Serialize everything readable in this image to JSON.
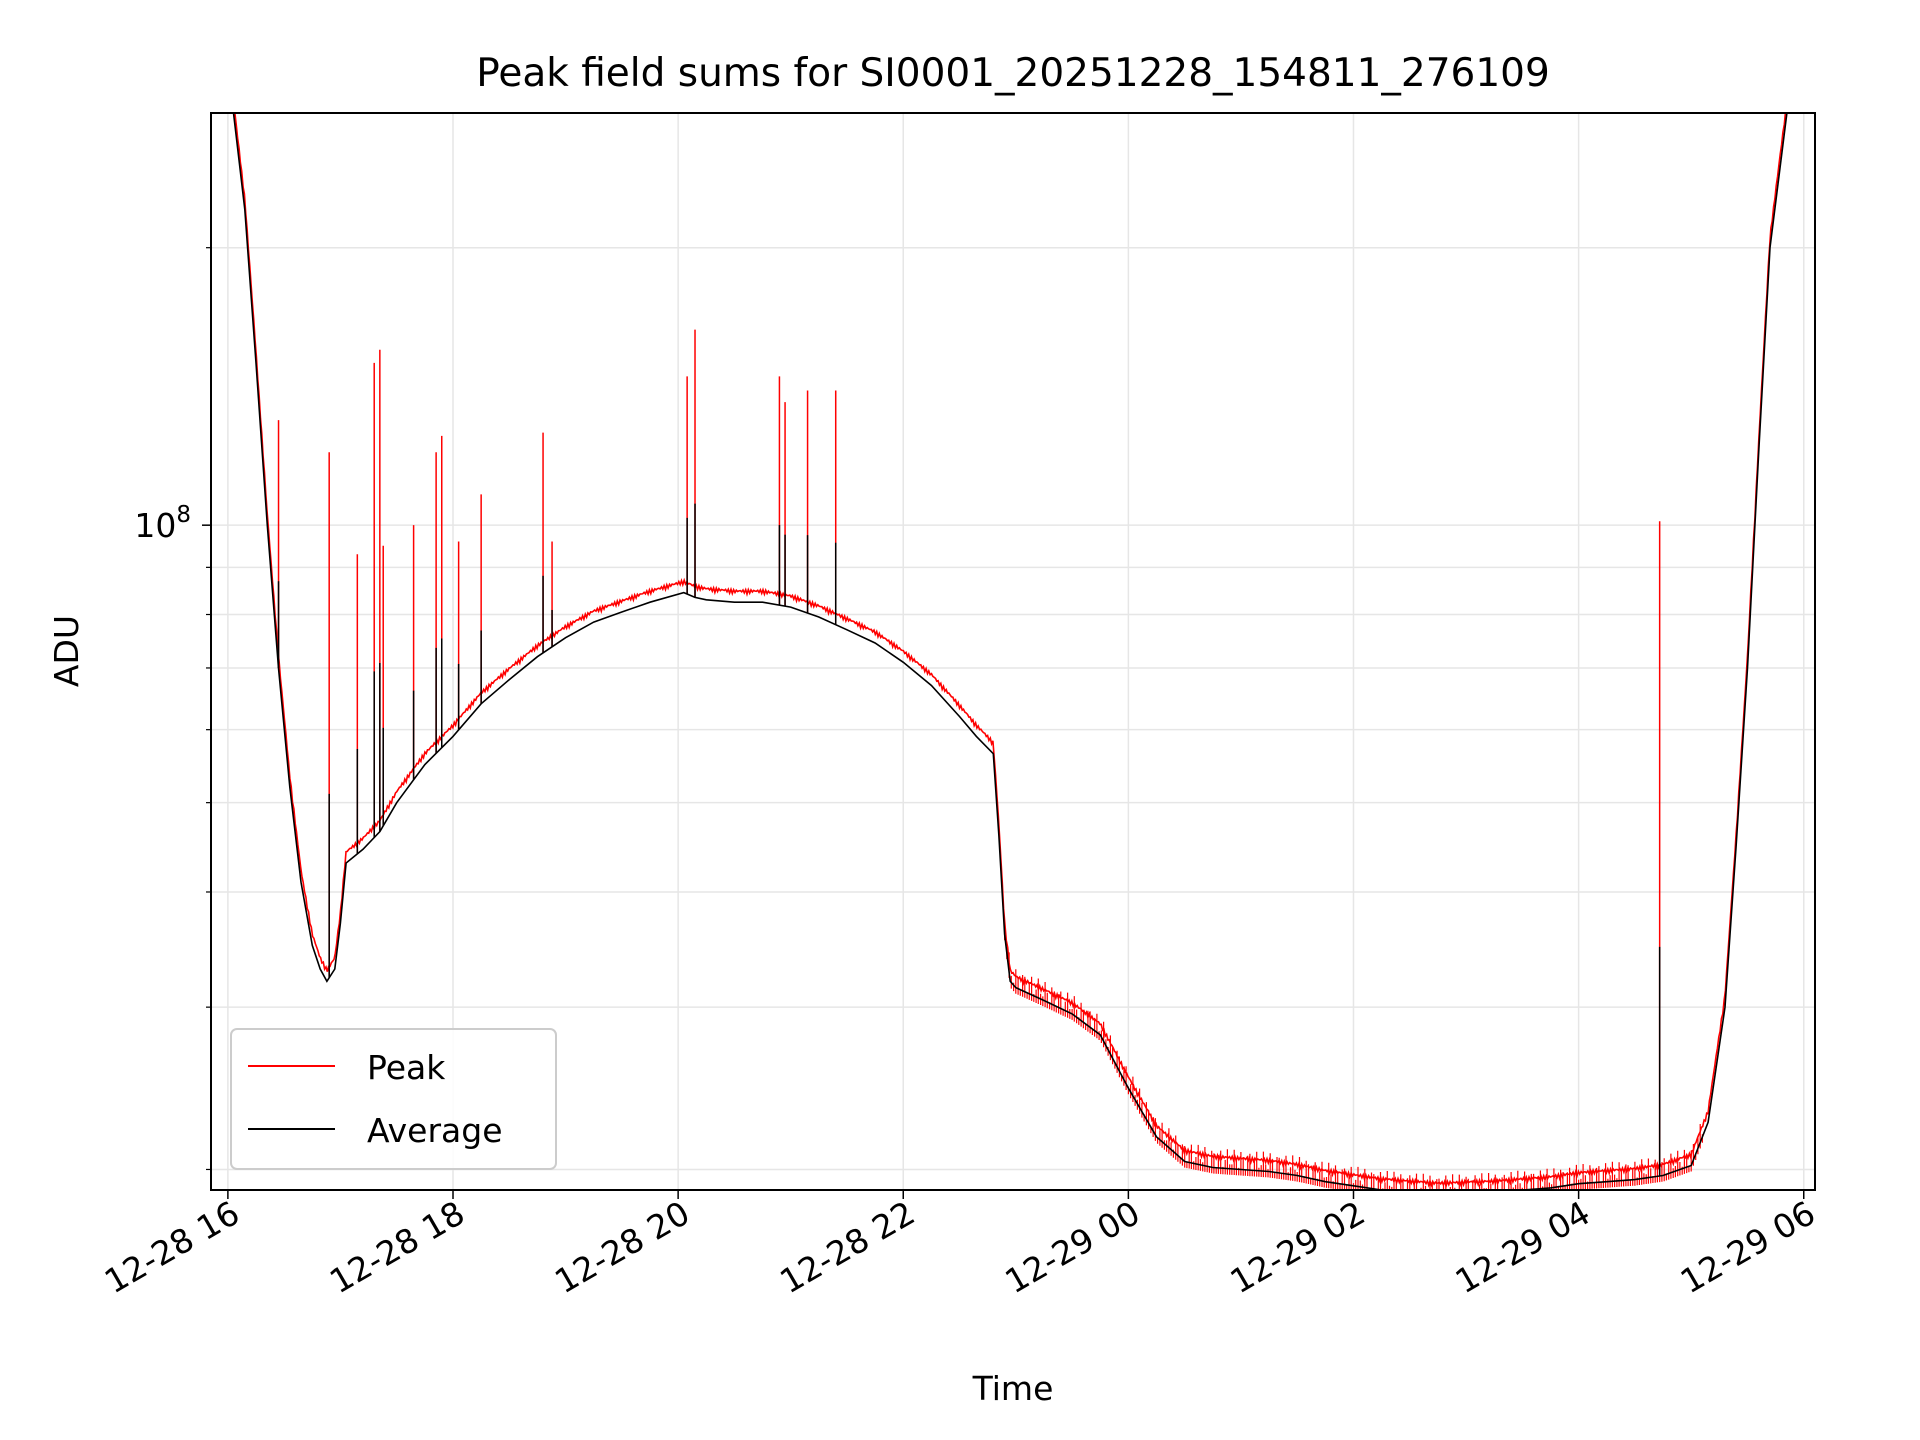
{
  "chart_data": {
    "type": "line",
    "title": "Peak field sums for SI0001_20251228_154811_276109",
    "xlabel": "Time",
    "ylabel": "ADU",
    "y_scale": "log",
    "ylim": [
      19000000,
      280000000
    ],
    "xlim_hours": [
      15.85,
      30.1
    ],
    "grid": true,
    "legend": {
      "position": "lower-left",
      "entries": [
        "Peak",
        "Average"
      ]
    },
    "colors": {
      "Peak": "#ff0000",
      "Average": "#000000",
      "grid": "#e6e6e6"
    },
    "x_ticks": [
      {
        "hour": 16,
        "label": "12-28 16"
      },
      {
        "hour": 18,
        "label": "12-28 18"
      },
      {
        "hour": 20,
        "label": "12-28 20"
      },
      {
        "hour": 22,
        "label": "12-28 22"
      },
      {
        "hour": 24,
        "label": "12-29 00"
      },
      {
        "hour": 26,
        "label": "12-29 02"
      },
      {
        "hour": 28,
        "label": "12-29 04"
      },
      {
        "hour": 30,
        "label": "12-29 06"
      }
    ],
    "y_major_ticks": [
      {
        "value": 100000000,
        "label_base": "10",
        "label_exp": "8"
      }
    ],
    "y_minor_ticks": [
      20000000,
      30000000,
      40000000,
      50000000,
      60000000,
      70000000,
      80000000,
      90000000,
      200000000
    ],
    "series": [
      {
        "name": "Average",
        "x_hours": [
          15.85,
          16.05,
          16.15,
          16.25,
          16.35,
          16.45,
          16.55,
          16.65,
          16.75,
          16.82,
          16.88,
          16.95,
          17.0,
          17.05,
          17.2,
          17.35,
          17.5,
          17.75,
          18.0,
          18.25,
          18.5,
          18.75,
          19.0,
          19.25,
          19.5,
          19.75,
          20.05,
          20.15,
          20.25,
          20.5,
          20.75,
          21.0,
          21.25,
          21.5,
          21.75,
          22.0,
          22.25,
          22.5,
          22.65,
          22.8,
          22.85,
          22.9,
          22.95,
          23.0,
          23.25,
          23.5,
          23.75,
          24.0,
          24.25,
          24.5,
          24.75,
          25.0,
          25.25,
          25.5,
          25.75,
          26.0,
          26.25,
          26.5,
          26.75,
          27.0,
          27.25,
          27.5,
          27.75,
          28.0,
          28.25,
          28.5,
          28.75,
          29.0,
          29.15,
          29.3,
          29.4,
          29.5,
          29.6,
          29.7,
          29.85,
          30.1
        ],
        "y": [
          280000000,
          280000000,
          220000000,
          150000000,
          100000000,
          70000000,
          52000000,
          41000000,
          35000000,
          33000000,
          32000000,
          33000000,
          37000000,
          43000000,
          44500000,
          46500000,
          50000000,
          55000000,
          59000000,
          64000000,
          68000000,
          72000000,
          75500000,
          78500000,
          80500000,
          82500000,
          84500000,
          83500000,
          83000000,
          82500000,
          82500000,
          81500000,
          79500000,
          77000000,
          74500000,
          71000000,
          67000000,
          62000000,
          59000000,
          56500000,
          46000000,
          36000000,
          32000000,
          31500000,
          30500000,
          29500000,
          28000000,
          24500000,
          21700000,
          20400000,
          20100000,
          20000000,
          19900000,
          19700000,
          19400000,
          19200000,
          19000000,
          18900000,
          18800000,
          18850000,
          18900000,
          19000000,
          19100000,
          19300000,
          19400000,
          19500000,
          19700000,
          20200000,
          22500000,
          30000000,
          45000000,
          70000000,
          120000000,
          200000000,
          280000000,
          280000000
        ]
      },
      {
        "name": "Peak",
        "spikes": [
          {
            "hour": 16.45,
            "value": 130000000
          },
          {
            "hour": 16.9,
            "value": 120000000
          },
          {
            "hour": 17.15,
            "value": 93000000
          },
          {
            "hour": 17.3,
            "value": 150000000
          },
          {
            "hour": 17.35,
            "value": 155000000
          },
          {
            "hour": 17.38,
            "value": 95000000
          },
          {
            "hour": 17.65,
            "value": 100000000
          },
          {
            "hour": 17.85,
            "value": 120000000
          },
          {
            "hour": 17.9,
            "value": 125000000
          },
          {
            "hour": 18.05,
            "value": 96000000
          },
          {
            "hour": 18.25,
            "value": 108000000
          },
          {
            "hour": 18.8,
            "value": 126000000
          },
          {
            "hour": 18.88,
            "value": 96000000
          },
          {
            "hour": 20.08,
            "value": 145000000
          },
          {
            "hour": 20.15,
            "value": 163000000
          },
          {
            "hour": 20.9,
            "value": 145000000
          },
          {
            "hour": 20.95,
            "value": 136000000
          },
          {
            "hour": 21.15,
            "value": 140000000
          },
          {
            "hour": 21.4,
            "value": 140000000
          },
          {
            "hour": 28.72,
            "value": 101000000
          }
        ]
      }
    ]
  }
}
